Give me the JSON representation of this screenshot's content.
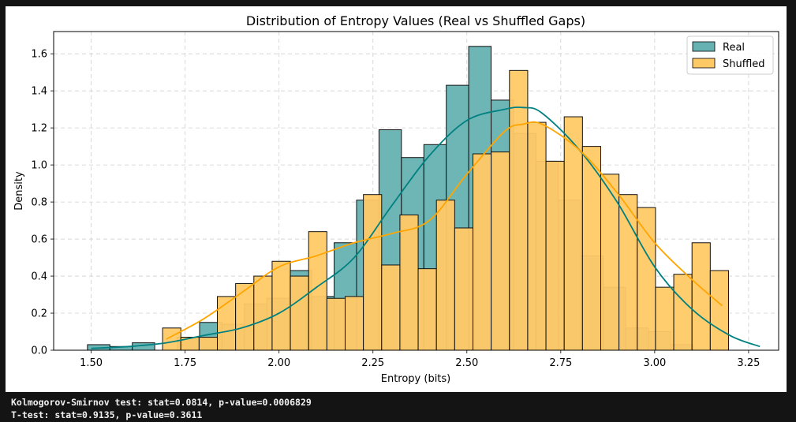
{
  "chart_data": {
    "type": "histogram",
    "title": "Distribution of Entropy Values (Real vs Shuffled Gaps)",
    "xlabel": "Entropy (bits)",
    "ylabel": "Density",
    "xlim": [
      1.4,
      3.33
    ],
    "ylim": [
      0,
      1.72
    ],
    "xticks": [
      1.5,
      1.75,
      2.0,
      2.25,
      2.5,
      2.75,
      3.0,
      3.25
    ],
    "xtick_labels": [
      "1.50",
      "1.75",
      "2.00",
      "2.25",
      "2.50",
      "2.75",
      "3.00",
      "3.25"
    ],
    "yticks": [
      0,
      0.2,
      0.4,
      0.6,
      0.8,
      1.0,
      1.2,
      1.4,
      1.6
    ],
    "ytick_labels": [
      "0.0",
      "0.2",
      "0.4",
      "0.6",
      "0.8",
      "1.0",
      "1.2",
      "1.4",
      "1.6"
    ],
    "grid": true,
    "legend_position": "top-right",
    "series": [
      {
        "name": "Real",
        "color": "#008080",
        "fill": "#66b2b2",
        "bins_start": 1.49,
        "bin_width": 0.0597,
        "values": [
          0.03,
          0.02,
          0.04,
          0.0,
          0.07,
          0.15,
          0.14,
          0.25,
          0.28,
          0.43,
          0.29,
          0.58,
          0.81,
          1.19,
          1.04,
          1.11,
          1.43,
          1.64,
          1.35,
          1.17,
          1.02,
          0.81,
          0.51,
          0.34,
          0.12,
          0.1,
          0.03
        ],
        "kde_x": [
          1.5,
          1.6,
          1.7,
          1.8,
          1.9,
          2.0,
          2.1,
          2.2,
          2.3,
          2.4,
          2.5,
          2.6,
          2.65,
          2.7,
          2.8,
          2.9,
          3.0,
          3.1,
          3.2,
          3.28
        ],
        "kde_y": [
          0.01,
          0.02,
          0.04,
          0.08,
          0.12,
          0.2,
          0.34,
          0.5,
          0.78,
          1.05,
          1.24,
          1.3,
          1.31,
          1.28,
          1.08,
          0.8,
          0.45,
          0.22,
          0.08,
          0.02
        ]
      },
      {
        "name": "Shuffled",
        "color": "#FFA500",
        "fill": "#FFC966",
        "bins_start": 1.69,
        "bin_width": 0.0486,
        "values": [
          0.12,
          0.07,
          0.07,
          0.29,
          0.36,
          0.4,
          0.48,
          0.4,
          0.64,
          0.28,
          0.29,
          0.84,
          0.46,
          0.73,
          0.44,
          0.81,
          0.66,
          1.06,
          1.07,
          1.51,
          1.23,
          1.02,
          1.26,
          1.1,
          0.95,
          0.84,
          0.77,
          0.34,
          0.41,
          0.58,
          0.43
        ],
        "kde_x": [
          1.7,
          1.8,
          1.9,
          2.0,
          2.1,
          2.2,
          2.3,
          2.4,
          2.5,
          2.6,
          2.65,
          2.7,
          2.8,
          2.9,
          3.0,
          3.1,
          3.18
        ],
        "kde_y": [
          0.06,
          0.17,
          0.31,
          0.45,
          0.51,
          0.58,
          0.63,
          0.7,
          0.95,
          1.18,
          1.22,
          1.22,
          1.08,
          0.85,
          0.58,
          0.38,
          0.24
        ]
      }
    ]
  },
  "output": {
    "line1": "Kolmogorov-Smirnov test: stat=0.0814, p-value=0.0006829",
    "line2": "T-test: stat=0.9135, p-value=0.3611"
  }
}
